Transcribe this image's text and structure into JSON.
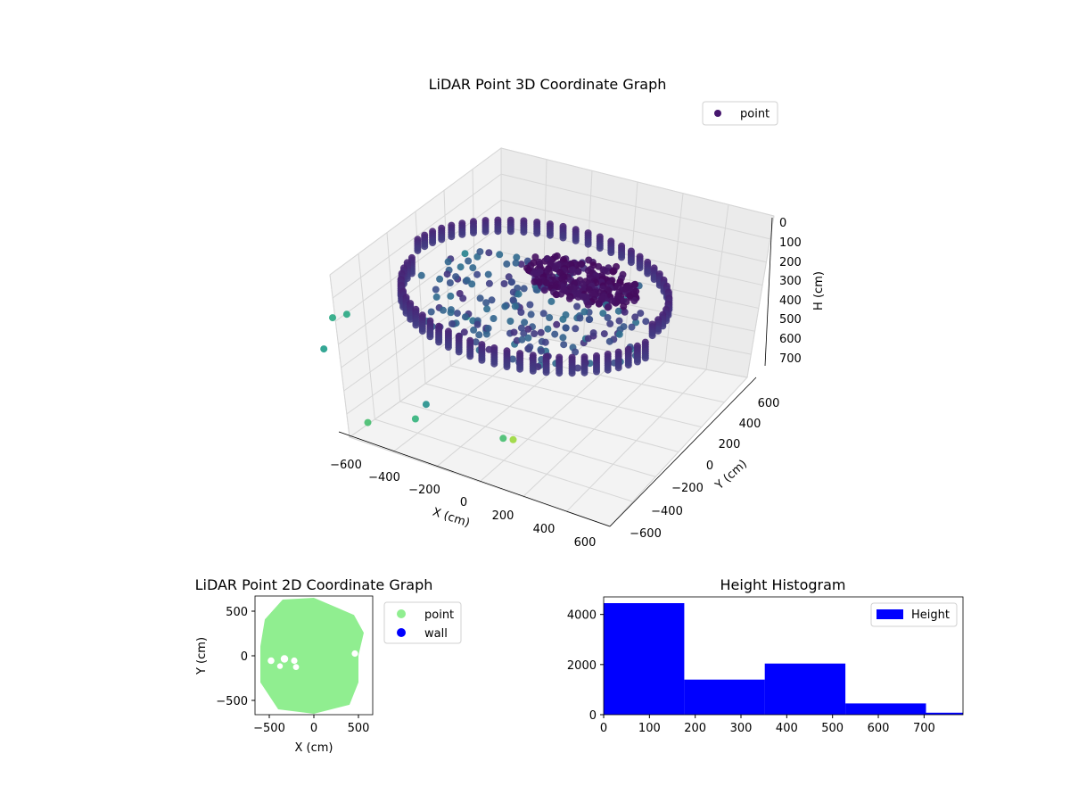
{
  "chart_data": [
    {
      "type": "scatter",
      "projection": "3d",
      "title": "LiDAR Point 3D Coordinate Graph",
      "xlabel": "X (cm)",
      "ylabel": "Y (cm)",
      "zlabel": "H (cm)",
      "x_ticks": [
        -600,
        -400,
        -200,
        0,
        200,
        400,
        600
      ],
      "y_ticks": [
        -600,
        -400,
        -200,
        0,
        200,
        400,
        600
      ],
      "z_ticks": [
        0,
        100,
        200,
        300,
        400,
        500,
        600,
        700
      ],
      "x_tick_labels": [
        "−600",
        "−400",
        "−200",
        "0",
        "200",
        "400",
        "600"
      ],
      "y_tick_labels": [
        "−600",
        "−400",
        "−200",
        "0",
        "200",
        "400",
        "600"
      ],
      "z_tick_labels": [
        "0",
        "100",
        "200",
        "300",
        "400",
        "500",
        "600",
        "700"
      ],
      "xlim": [
        -650,
        650
      ],
      "ylim": [
        -650,
        650
      ],
      "zlim": [
        0,
        750
      ],
      "z_inverted": true,
      "colormap": "viridis",
      "legend": {
        "placement": "top-right",
        "entries": [
          {
            "label": "point",
            "color": "#46166e"
          }
        ]
      },
      "series": [
        {
          "name": "point",
          "values": [
            {
              "x": 600,
              "y": 0,
              "z": 50
            },
            {
              "x": 520,
              "y": 300,
              "z": 50
            },
            {
              "x": 300,
              "y": 520,
              "z": 50
            },
            {
              "x": 0,
              "y": 600,
              "z": 50
            },
            {
              "x": -300,
              "y": 520,
              "z": 50
            },
            {
              "x": -520,
              "y": 300,
              "z": 50
            },
            {
              "x": -600,
              "y": 0,
              "z": 120
            },
            {
              "x": -520,
              "y": -300,
              "z": 200
            },
            {
              "x": -300,
              "y": -520,
              "z": 250
            },
            {
              "x": 0,
              "y": -600,
              "z": 250
            },
            {
              "x": 300,
              "y": -520,
              "z": 200
            },
            {
              "x": 520,
              "y": -300,
              "z": 120
            },
            {
              "x": 0,
              "y": 0,
              "z": 300
            },
            {
              "x": -200,
              "y": 100,
              "z": 350
            },
            {
              "x": 150,
              "y": -100,
              "z": 400
            },
            {
              "x": -700,
              "y": -400,
              "z": 650
            },
            {
              "x": -350,
              "y": -650,
              "z": 700
            },
            {
              "x": 200,
              "y": -650,
              "z": 750
            }
          ]
        }
      ]
    },
    {
      "type": "scatter",
      "title": "LiDAR Point 2D Coordinate Graph",
      "xlabel": "X (cm)",
      "ylabel": "Y (cm)",
      "x_ticks": [
        -500,
        0,
        500
      ],
      "y_ticks": [
        -500,
        0,
        500
      ],
      "x_tick_labels": [
        "−500",
        "0",
        "500"
      ],
      "y_tick_labels": [
        "−500",
        "0",
        "500"
      ],
      "xlim": [
        -660,
        660
      ],
      "ylim": [
        -660,
        660
      ],
      "grid": false,
      "legend": {
        "placement": "outside-right",
        "entries": [
          {
            "label": "point",
            "color": "#90ee90"
          },
          {
            "label": "wall",
            "color": "#0000ff"
          }
        ]
      },
      "series": [
        {
          "name": "point",
          "color": "#90ee90",
          "description": "dense filled disc of points, radius about 620 cm",
          "values": [
            {
              "x": 0,
              "y": 640
            },
            {
              "x": 450,
              "y": 450
            },
            {
              "x": 560,
              "y": 250
            },
            {
              "x": 500,
              "y": 0
            },
            {
              "x": 500,
              "y": -300
            },
            {
              "x": 400,
              "y": -550
            },
            {
              "x": 0,
              "y": -650
            },
            {
              "x": -400,
              "y": -600
            },
            {
              "x": -600,
              "y": -300
            },
            {
              "x": -600,
              "y": 100
            },
            {
              "x": -550,
              "y": 400
            },
            {
              "x": -350,
              "y": 620
            }
          ]
        },
        {
          "name": "wall",
          "color": "#0000ff",
          "values": []
        }
      ]
    },
    {
      "type": "bar",
      "subtype": "histogram",
      "title": "Height Histogram",
      "xlabel": "",
      "ylabel": "",
      "x_ticks": [
        0,
        100,
        200,
        300,
        400,
        500,
        600,
        700
      ],
      "y_ticks": [
        0,
        2000,
        4000
      ],
      "xlim": [
        0,
        785
      ],
      "ylim": [
        0,
        4700
      ],
      "color": "#0000ff",
      "legend": {
        "placement": "top-right",
        "entries": [
          {
            "label": "Height",
            "color": "#0000ff"
          }
        ]
      },
      "bins": [
        {
          "start": 0,
          "end": 176,
          "count": 4450
        },
        {
          "start": 176,
          "end": 352,
          "count": 1400
        },
        {
          "start": 352,
          "end": 528,
          "count": 2040
        },
        {
          "start": 528,
          "end": 704,
          "count": 450
        },
        {
          "start": 704,
          "end": 880,
          "count": 80
        }
      ]
    }
  ]
}
